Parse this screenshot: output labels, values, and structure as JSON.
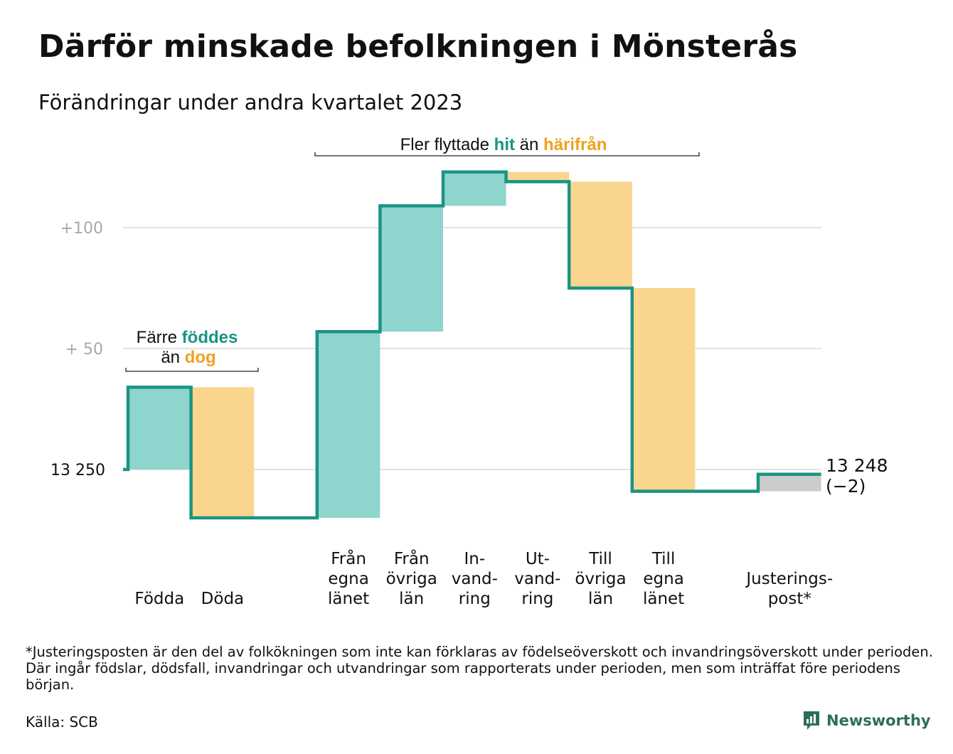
{
  "title": "Därför minskade befolkningen i Mönsterås",
  "subtitle": "Förändringar under andra kvartalet 2023",
  "chart_data": {
    "type": "waterfall",
    "start_value": 13250,
    "end_value": 13248,
    "end_label": "13 248",
    "end_change_label": "(−2)",
    "ylim": [
      13230,
      13385
    ],
    "y_ticks": [
      {
        "value": 13250,
        "label": "13  250"
      },
      {
        "value": 13300,
        "label": "+  50"
      },
      {
        "value": 13350,
        "label": "+100"
      }
    ],
    "grid": true,
    "steps": [
      {
        "label_lines": [
          "Födda"
        ],
        "value": 34,
        "kind": "in"
      },
      {
        "label_lines": [
          "Döda"
        ],
        "value": -54,
        "kind": "out"
      },
      {
        "label_lines": [
          ""
        ],
        "value": 0,
        "kind": "gap"
      },
      {
        "label_lines": [
          "Från",
          "egna",
          "länet"
        ],
        "value": 77,
        "kind": "in"
      },
      {
        "label_lines": [
          "Från",
          "övriga",
          "län"
        ],
        "value": 52,
        "kind": "in"
      },
      {
        "label_lines": [
          "In-",
          "vand-",
          "ring"
        ],
        "value": 14,
        "kind": "in"
      },
      {
        "label_lines": [
          "Ut-",
          "vand-",
          "ring"
        ],
        "value": -4,
        "kind": "out"
      },
      {
        "label_lines": [
          "Till",
          "övriga",
          "län"
        ],
        "value": -44,
        "kind": "out"
      },
      {
        "label_lines": [
          "Till",
          "egna",
          "länet"
        ],
        "value": -84,
        "kind": "out"
      },
      {
        "label_lines": [
          ""
        ],
        "value": 0,
        "kind": "gap"
      },
      {
        "label_lines": [
          "Justerings-",
          "post*"
        ],
        "value": 7,
        "kind": "adjust"
      }
    ],
    "annotations": [
      {
        "parts": [
          {
            "text": "Färre ",
            "color": "text"
          },
          {
            "text": "föddes",
            "color": "teal"
          }
        ],
        "parts2": [
          {
            "text": "än ",
            "color": "text"
          },
          {
            "text": "dog",
            "color": "orange"
          }
        ]
      },
      {
        "parts": [
          {
            "text": "Fler flyttade ",
            "color": "text"
          },
          {
            "text": "hit",
            "color": "teal"
          },
          {
            "text": " än ",
            "color": "text"
          },
          {
            "text": "härifrån",
            "color": "orange"
          }
        ]
      }
    ]
  },
  "colors": {
    "line": "#1a9484",
    "in_fill": "#8ed5cd",
    "out_fill": "#fad58e",
    "adjust_fill": "#cccccc",
    "teal_text": "#1a9484",
    "orange_text": "#f0a020",
    "grid": "#e2e2e2",
    "tick_text": "#a8a8a8",
    "text": "#111111"
  },
  "footnote": "*Justeringsposten är den del av folkökningen som inte kan förklaras av födelseöverskott och invandringsöverskott under perioden. Där ingår födslar, dödsfall, invandringar och utvandringar som rapporterats under perioden, men som inträffat före periodens början.",
  "source": "Källa: SCB",
  "brand": {
    "name": "Newsworthy",
    "logo_icon": "newsworthy-logo-icon"
  }
}
